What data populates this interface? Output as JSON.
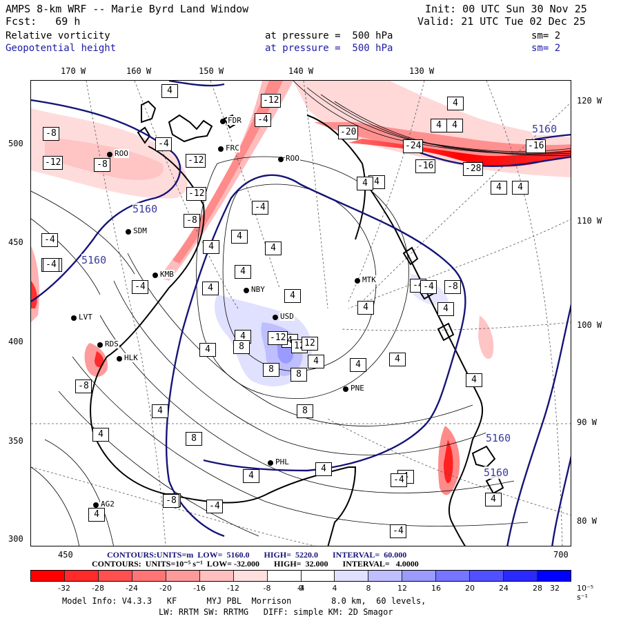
{
  "header": {
    "title": "AMPS 8-km WRF -- Marie Byrd Land Window",
    "fcst": "Fcst:   69 h",
    "init": "Init: 00 UTC Sun 30 Nov 25",
    "valid": "Valid: 21 UTC Tue 02 Dec 25",
    "field1": "Relative vorticity",
    "field1_level": "at pressure =  500 hPa",
    "field1_sm": "sm= 2",
    "field2": "Geopotential height",
    "field2_level": "at pressure =  500 hPa",
    "field2_sm": "sm= 2"
  },
  "axes": {
    "top_lon": [
      "170 W",
      "160 W",
      "150 W",
      "140 W",
      "130 W"
    ],
    "right_lon": [
      "120 W",
      "110 W",
      "100 W",
      "90 W",
      "80 W"
    ],
    "left_ticks": [
      "500",
      "450",
      "400",
      "350",
      "300"
    ],
    "bottom_ticks": [
      "450",
      "700"
    ]
  },
  "stations": [
    "ROO",
    "FRC",
    "FDR",
    "ROO",
    "SDM",
    "KMB",
    "NBY",
    "MTK",
    "LVT",
    "RDS",
    "HLK",
    "USD",
    "PNE",
    "PHL",
    "AG2"
  ],
  "height_labels": [
    "5160",
    "5160",
    "5160",
    "5160",
    "5160",
    "5160"
  ],
  "vort_labels": {
    "pos": [
      "4",
      "4",
      "4",
      "4",
      "4",
      "4",
      "4",
      "4",
      "4",
      "4",
      "4",
      "4",
      "4",
      "4",
      "4",
      "4",
      "4",
      "4",
      "4",
      "4",
      "4",
      "4",
      "4",
      "4",
      "4",
      "8",
      "8",
      "8",
      "8",
      "8",
      "4",
      "4",
      "4",
      "4",
      "4"
    ],
    "neg": [
      "-8",
      "-12",
      "-8",
      "-4",
      "-12",
      "-8",
      "-12",
      "-4",
      "-4",
      "-4",
      "-4",
      "-4",
      "-12",
      "-20",
      "-16",
      "-28",
      "-16",
      "-24",
      "-4",
      "-8",
      "-8",
      "-4",
      "-4",
      "-4",
      "-4",
      "-8",
      "-4",
      "-4",
      "-4"
    ],
    "mid": [
      "-12",
      "12",
      "12"
    ]
  },
  "contour_text_height": "CONTOURS:UNITS=m  LOW=  5160.0       HIGH=  5220.0       INTERVAL=  60.000",
  "contour_text_vort": "CONTOURS:  UNITS=10⁻⁵ s⁻¹  LOW= -32.000       HIGH=  32.000       INTERVAL=   4.0000",
  "colorbar": {
    "colors": [
      "#ff0000",
      "#ff2a2a",
      "#ff5050",
      "#ff7575",
      "#ff9a9a",
      "#ffbfbf",
      "#ffe0e0",
      "#ffffff",
      "#ffffff",
      "#e0e0ff",
      "#bfbfff",
      "#9a9aff",
      "#7575ff",
      "#5050ff",
      "#2a2aff",
      "#0000ff"
    ],
    "ticks": [
      "-32",
      "-28",
      "-24",
      "-20",
      "-16",
      "-12",
      "-8",
      "-4",
      "0",
      "4",
      "8",
      "12",
      "16",
      "20",
      "24",
      "28",
      "32"
    ],
    "units": "10⁻⁵ s⁻¹"
  },
  "footer": {
    "line1": "Model Info: V4.3.3   KF      MYJ PBL  Morrison        8.0 km,  60 levels,",
    "line2": "LW: RRTM SW: RRTMG   DIFF: simple KM: 2D Smagor"
  }
}
